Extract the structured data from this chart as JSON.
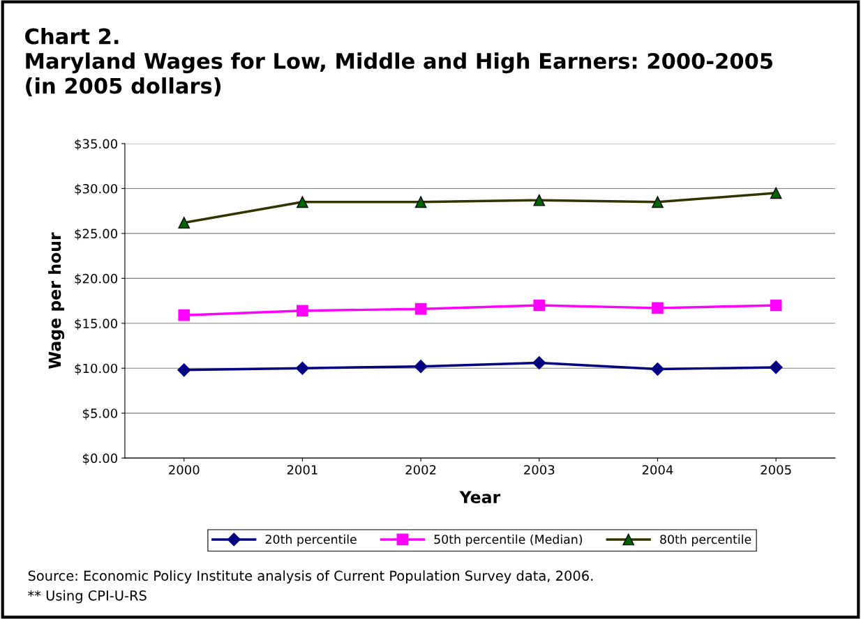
{
  "chart_data": {
    "type": "line",
    "title": "Chart 2.\nMaryland Wages for Low, Middle and High Earners: 2000-2005\n(in 2005 dollars)",
    "xlabel": "Year",
    "ylabel": "Wage per hour",
    "categories": [
      "2000",
      "2001",
      "2002",
      "2003",
      "2004",
      "2005"
    ],
    "series": [
      {
        "name": "20th percentile",
        "color": "#000080",
        "marker": "diamond",
        "values": [
          9.8,
          10.0,
          10.2,
          10.6,
          9.9,
          10.1
        ]
      },
      {
        "name": "50th percentile (Median)",
        "color": "#ff00ff",
        "marker": "square",
        "values": [
          15.9,
          16.4,
          16.6,
          17.0,
          16.7,
          17.0
        ]
      },
      {
        "name": "80th percentile",
        "color": "#333300",
        "marker": "triangle",
        "values": [
          26.2,
          28.5,
          28.5,
          28.7,
          28.5,
          29.5
        ]
      }
    ],
    "ylim": [
      0,
      35
    ],
    "yticks": [
      {
        "value": 0,
        "label": "$0.00"
      },
      {
        "value": 5,
        "label": "$5.00"
      },
      {
        "value": 10,
        "label": "$10.00"
      },
      {
        "value": 15,
        "label": "$15.00"
      },
      {
        "value": 20,
        "label": "$20.00"
      },
      {
        "value": 25,
        "label": "$25.00"
      },
      {
        "value": 30,
        "label": "$30.00"
      },
      {
        "value": 35,
        "label": "$35.00"
      }
    ],
    "grid": "y",
    "legend": "bottom",
    "line_style": "solid",
    "annotations": [
      "Source: Economic Policy Institute analysis of Current Population Survey data, 2006.",
      "** Using CPI-U-RS"
    ]
  }
}
